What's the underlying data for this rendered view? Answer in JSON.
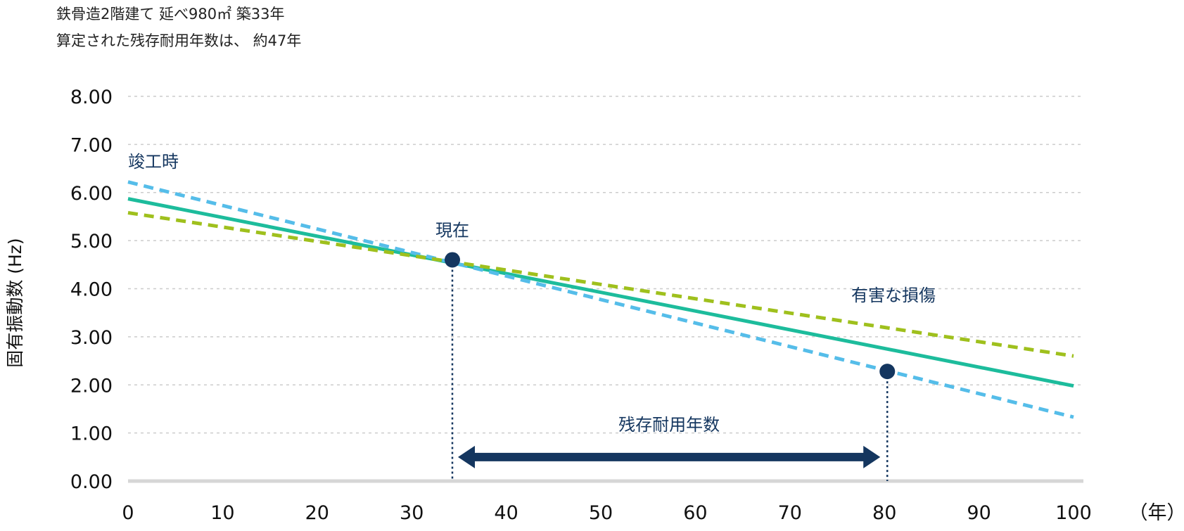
{
  "header": {
    "line1": "鉄骨造2階建て 延べ980㎡ 築33年",
    "line2": "算定された残存耐用年数は、 約47年"
  },
  "chart_data": {
    "type": "line",
    "title": "",
    "xlabel": "（年）",
    "ylabel": "固有振動数 (Hz)",
    "xlim": [
      0,
      100
    ],
    "ylim": [
      0,
      8
    ],
    "x_ticks": [
      "0",
      "10",
      "20",
      "30",
      "40",
      "50",
      "60",
      "70",
      "80",
      "90",
      "100"
    ],
    "y_ticks": [
      "0.00",
      "1.00",
      "2.00",
      "3.00",
      "4.00",
      "5.00",
      "6.00",
      "7.00",
      "8.00"
    ],
    "grid": "horizontal-dotted",
    "series": [
      {
        "style": "solid",
        "color": "#1dbc9c",
        "points": [
          [
            0,
            5.87
          ],
          [
            100,
            1.98
          ]
        ]
      },
      {
        "style": "dashed",
        "color": "#55bde9",
        "points": [
          [
            0,
            6.22
          ],
          [
            100,
            1.33
          ]
        ]
      },
      {
        "style": "dashed",
        "color": "#9fc01d",
        "points": [
          [
            0,
            5.58
          ],
          [
            100,
            2.6
          ]
        ]
      }
    ],
    "markers": [
      {
        "label": "現在",
        "x": 34.3,
        "y": 4.6,
        "color": "#14365f"
      },
      {
        "label": "有害な損傷",
        "x": 80.3,
        "y": 2.28,
        "color": "#14365f"
      }
    ],
    "annotations": {
      "start_label": "竣工時",
      "span_label": "残存耐用年数",
      "span": [
        34.3,
        80.3
      ],
      "arrow_y": 0.5
    },
    "label_color": "#14365f"
  }
}
